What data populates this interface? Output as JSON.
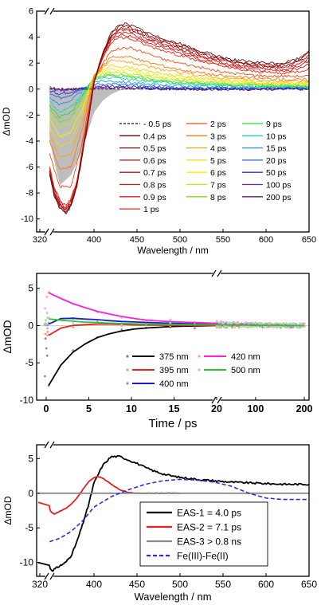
{
  "chart_data": [
    {
      "type": "line",
      "panel": "top",
      "xlabel": "Wavelength / nm",
      "ylabel": "ΔmOD",
      "xlim": [
        320,
        650
      ],
      "ylim": [
        -11,
        6
      ],
      "axis_break": "after 320 nm",
      "x_ticks": [
        "320",
        "400",
        "450",
        "500",
        "550",
        "600",
        "650"
      ],
      "y_ticks": [
        "-10",
        "-8",
        "-6",
        "-4",
        "-2",
        "0",
        "2",
        "4",
        "6"
      ],
      "legend_position": "bottom-right",
      "legend": [
        {
          "name": "- 0.5 ps",
          "color": "#111111",
          "dash": true
        },
        {
          "name": "0.4 ps",
          "color": "#6e0b0b"
        },
        {
          "name": "0.5 ps",
          "color": "#8a0f0f"
        },
        {
          "name": "0.6 ps",
          "color": "#a01212"
        },
        {
          "name": "0.7 ps",
          "color": "#b81515"
        },
        {
          "name": "0.8 ps",
          "color": "#cf1818"
        },
        {
          "name": "0.9 ps",
          "color": "#e01b1b"
        },
        {
          "name": "1 ps",
          "color": "#f02a1a"
        },
        {
          "name": "2 ps",
          "color": "#ff4a14"
        },
        {
          "name": "3 ps",
          "color": "#ff7a10"
        },
        {
          "name": "4 ps",
          "color": "#ffa60c"
        },
        {
          "name": "5 ps",
          "color": "#ffd408"
        },
        {
          "name": "6 ps",
          "color": "#f2ee05"
        },
        {
          "name": "7 ps",
          "color": "#b6ec09"
        },
        {
          "name": "8 ps",
          "color": "#6fe60f"
        },
        {
          "name": "9 ps",
          "color": "#28dc3a"
        },
        {
          "name": "10 ps",
          "color": "#19d6c6"
        },
        {
          "name": "15 ps",
          "color": "#1a9ef0"
        },
        {
          "name": "20 ps",
          "color": "#2263e6"
        },
        {
          "name": "50 ps",
          "color": "#3a2bd6"
        },
        {
          "name": "100 ps",
          "color": "#6a22b8"
        },
        {
          "name": "200 ps",
          "color": "#5a1a6a"
        }
      ],
      "series": [
        {
          "name": "- 0.5 ps",
          "x": [
            320,
            360,
            400,
            450,
            500,
            550,
            600,
            650
          ],
          "y": [
            0,
            0,
            0,
            0,
            0,
            0,
            0,
            0
          ]
        },
        {
          "name": "0.4 ps",
          "x": [
            322,
            330,
            340,
            350,
            360,
            370,
            380,
            390,
            400,
            410,
            420,
            430,
            440,
            450,
            460,
            470,
            480,
            490,
            500,
            520,
            540,
            560,
            580,
            600,
            620,
            640,
            650
          ],
          "y": [
            -6.5,
            -8.2,
            -9.2,
            -9.6,
            -9.0,
            -7.5,
            -5.0,
            -2.5,
            0.5,
            2.8,
            4.3,
            5.0,
            5.0,
            4.7,
            4.4,
            4.1,
            3.9,
            3.7,
            3.5,
            3.0,
            2.6,
            2.3,
            2.1,
            2.0,
            2.0,
            2.4,
            3.0
          ]
        },
        {
          "name": "1 ps",
          "x": [
            322,
            330,
            340,
            350,
            360,
            370,
            380,
            390,
            400,
            410,
            420,
            430,
            440,
            450,
            460,
            470,
            480,
            490,
            500,
            520,
            540,
            560,
            580,
            600,
            620,
            640,
            650
          ],
          "y": [
            -6.0,
            -7.5,
            -8.5,
            -9.0,
            -8.4,
            -7.0,
            -4.5,
            -2.0,
            0.6,
            2.4,
            3.6,
            4.0,
            3.9,
            3.7,
            3.4,
            3.2,
            3.0,
            2.8,
            2.6,
            2.2,
            1.9,
            1.6,
            1.4,
            1.3,
            1.2,
            1.4,
            1.6
          ]
        },
        {
          "name": "2 ps",
          "x": [
            322,
            340,
            360,
            380,
            400,
            420,
            440,
            460,
            480,
            500,
            550,
            600,
            650
          ],
          "y": [
            -5.0,
            -7.5,
            -7.5,
            -4.0,
            0.8,
            3.0,
            3.2,
            2.8,
            2.3,
            2.0,
            1.3,
            1.0,
            1.0
          ]
        },
        {
          "name": "3 ps",
          "x": [
            322,
            340,
            360,
            380,
            400,
            420,
            440,
            460,
            480,
            500,
            550,
            600,
            650
          ],
          "y": [
            -4.0,
            -6.2,
            -6.0,
            -3.0,
            1.0,
            2.5,
            2.5,
            2.1,
            1.8,
            1.5,
            1.0,
            0.8,
            0.7
          ]
        },
        {
          "name": "5 ps",
          "x": [
            322,
            340,
            360,
            380,
            400,
            420,
            440,
            460,
            480,
            500,
            550,
            600,
            650
          ],
          "y": [
            -2.8,
            -4.4,
            -4.0,
            -1.8,
            1.1,
            1.8,
            1.7,
            1.4,
            1.2,
            1.0,
            0.7,
            0.5,
            0.5
          ]
        },
        {
          "name": "7 ps",
          "x": [
            322,
            340,
            360,
            380,
            400,
            420,
            440,
            460,
            480,
            500,
            550,
            600,
            650
          ],
          "y": [
            -1.8,
            -3.0,
            -2.6,
            -1.0,
            1.0,
            1.3,
            1.2,
            1.0,
            0.8,
            0.7,
            0.5,
            0.4,
            0.3
          ]
        },
        {
          "name": "10 ps",
          "x": [
            322,
            340,
            360,
            380,
            400,
            420,
            440,
            460,
            480,
            500,
            550,
            600,
            650
          ],
          "y": [
            -1.0,
            -1.8,
            -1.4,
            -0.4,
            0.8,
            0.9,
            0.8,
            0.6,
            0.5,
            0.4,
            0.3,
            0.2,
            0.2
          ]
        },
        {
          "name": "20 ps",
          "x": [
            322,
            340,
            360,
            380,
            400,
            420,
            440,
            460,
            480,
            500,
            550,
            600,
            650
          ],
          "y": [
            -0.4,
            -0.7,
            -0.4,
            0.1,
            0.4,
            0.4,
            0.3,
            0.2,
            0.2,
            0.1,
            0.1,
            0.1,
            0.1
          ]
        },
        {
          "name": "200 ps",
          "x": [
            322,
            340,
            360,
            380,
            400,
            420,
            440,
            460,
            480,
            500,
            550,
            600,
            650
          ],
          "y": [
            0.1,
            0.0,
            0.0,
            0.05,
            0.1,
            0.1,
            0.05,
            0.05,
            0.0,
            0.0,
            0.0,
            0.0,
            0.0
          ]
        }
      ],
      "ground_state_bleach_fill": {
        "color": "#bdbdbd",
        "x": [
          322,
          340,
          360,
          380,
          390,
          400,
          410,
          420,
          430,
          440
        ],
        "y": [
          -4.0,
          -7.4,
          -6.6,
          -4.6,
          -3.2,
          -1.8,
          -0.9,
          -0.4,
          -0.1,
          0.0
        ]
      }
    },
    {
      "type": "scatter",
      "panel": "middle",
      "xlabel": "Time / ps",
      "ylabel": "ΔmOD",
      "ylim": [
        -10,
        7
      ],
      "axis_break": "20 ps (linear 0–20, then 20–200)",
      "x_ticks": [
        "0",
        "5",
        "10",
        "15",
        "20",
        "100",
        "200"
      ],
      "y_ticks": [
        "-10",
        "-5",
        "0",
        "5"
      ],
      "legend_position": "bottom",
      "series": [
        {
          "name": "375 nm",
          "color": "#000000",
          "x": [
            0.3,
            0.6,
            1,
            2,
            3,
            4,
            6,
            8,
            10,
            12,
            15,
            20,
            100,
            200
          ],
          "y": [
            -8.0,
            -7.2,
            -6.3,
            -4.9,
            -3.7,
            -2.8,
            -1.6,
            -0.9,
            -0.5,
            -0.3,
            -0.1,
            0.0,
            0.0,
            0.0
          ]
        },
        {
          "name": "395 nm",
          "color": "#e8211f",
          "x": [
            0.3,
            0.6,
            1,
            2,
            3,
            4,
            6,
            8,
            10,
            15,
            20,
            100,
            200
          ],
          "y": [
            -1.3,
            -1.0,
            -0.7,
            -0.2,
            0.0,
            0.1,
            0.2,
            0.2,
            0.1,
            0.05,
            0.0,
            0.0,
            0.0
          ]
        },
        {
          "name": "400 nm",
          "color": "#1c1ccf",
          "x": [
            0.3,
            0.6,
            1,
            2,
            3,
            4,
            6,
            8,
            10,
            15,
            20,
            100,
            200
          ],
          "y": [
            0.2,
            0.5,
            0.8,
            1.0,
            1.0,
            0.9,
            0.8,
            0.6,
            0.5,
            0.3,
            0.2,
            0.1,
            0.0
          ]
        },
        {
          "name": "420 nm",
          "color": "#ff1fd8",
          "x": [
            0.3,
            0.6,
            1,
            2,
            3,
            4,
            6,
            8,
            10,
            12,
            15,
            20,
            100,
            200
          ],
          "y": [
            4.4,
            4.2,
            4.0,
            3.5,
            3.0,
            2.6,
            1.9,
            1.4,
            1.0,
            0.7,
            0.5,
            0.3,
            0.1,
            0.0
          ]
        },
        {
          "name": "500 nm",
          "color": "#2ec42e",
          "x": [
            0.3,
            0.6,
            1,
            2,
            3,
            4,
            6,
            8,
            10,
            15,
            20,
            100,
            200
          ],
          "y": [
            0.9,
            0.9,
            0.8,
            0.7,
            0.6,
            0.5,
            0.4,
            0.3,
            0.25,
            0.15,
            0.1,
            0.05,
            0.0
          ]
        }
      ]
    },
    {
      "type": "line",
      "panel": "bottom",
      "xlabel": "Wavelength / nm",
      "ylabel": "ΔmOD",
      "xlim": [
        320,
        650
      ],
      "ylim": [
        -12,
        7
      ],
      "axis_break": "after 320 nm",
      "x_ticks": [
        "320",
        "400",
        "450",
        "500",
        "550",
        "600",
        "650"
      ],
      "y_ticks": [
        "-10",
        "-5",
        "0",
        "5"
      ],
      "legend_position": "bottom-center",
      "series": [
        {
          "name": "EAS-1 = 4.0 ps",
          "color": "#000000",
          "dash": false,
          "x": [
            320,
            323,
            326,
            330,
            340,
            350,
            360,
            370,
            380,
            390,
            400,
            410,
            420,
            430,
            440,
            450,
            460,
            470,
            480,
            490,
            500,
            520,
            540,
            560,
            580,
            600,
            620,
            640,
            650
          ],
          "y": [
            -10.0,
            -10.8,
            -11.2,
            -11.0,
            -10.5,
            -10.0,
            -9.0,
            -7.0,
            -4.5,
            -1.8,
            1.5,
            4.0,
            5.3,
            5.3,
            4.8,
            4.3,
            3.7,
            3.2,
            2.8,
            2.5,
            2.3,
            2.0,
            1.8,
            1.6,
            1.5,
            1.4,
            1.3,
            1.3,
            1.3
          ]
        },
        {
          "name": "EAS-2 = 7.1 ps",
          "color": "#e8211f",
          "dash": false,
          "x": [
            320,
            323,
            326,
            330,
            340,
            350,
            360,
            370,
            380,
            390,
            400,
            405,
            410,
            420,
            430,
            440,
            450,
            460,
            470,
            480,
            500
          ],
          "y": [
            -1.3,
            -2.5,
            -2.8,
            -3.0,
            -2.6,
            -2.2,
            -1.6,
            -0.7,
            0.5,
            1.6,
            2.3,
            2.4,
            2.2,
            1.3,
            0.5,
            0.1,
            0.0,
            0.0,
            0.0,
            0.0,
            0.0
          ]
        },
        {
          "name": "EAS-3 > 0.8 ns",
          "color": "#8a8a8a",
          "dash": false,
          "x": [
            320,
            400,
            500,
            600,
            650
          ],
          "y": [
            0.0,
            0.0,
            0.0,
            0.0,
            0.0
          ]
        },
        {
          "name": "Fe(III)-Fe(II)",
          "color": "#2b2be0",
          "dash": true,
          "x": [
            322,
            340,
            360,
            380,
            400,
            420,
            440,
            460,
            480,
            500,
            520,
            540,
            560,
            580,
            600,
            620,
            640,
            650
          ],
          "y": [
            -7.0,
            -6.5,
            -5.5,
            -4.0,
            -2.0,
            -0.5,
            0.5,
            1.3,
            1.8,
            2.0,
            1.9,
            1.6,
            1.0,
            0.0,
            -0.7,
            -0.9,
            -0.9,
            -0.9
          ]
        }
      ]
    }
  ]
}
